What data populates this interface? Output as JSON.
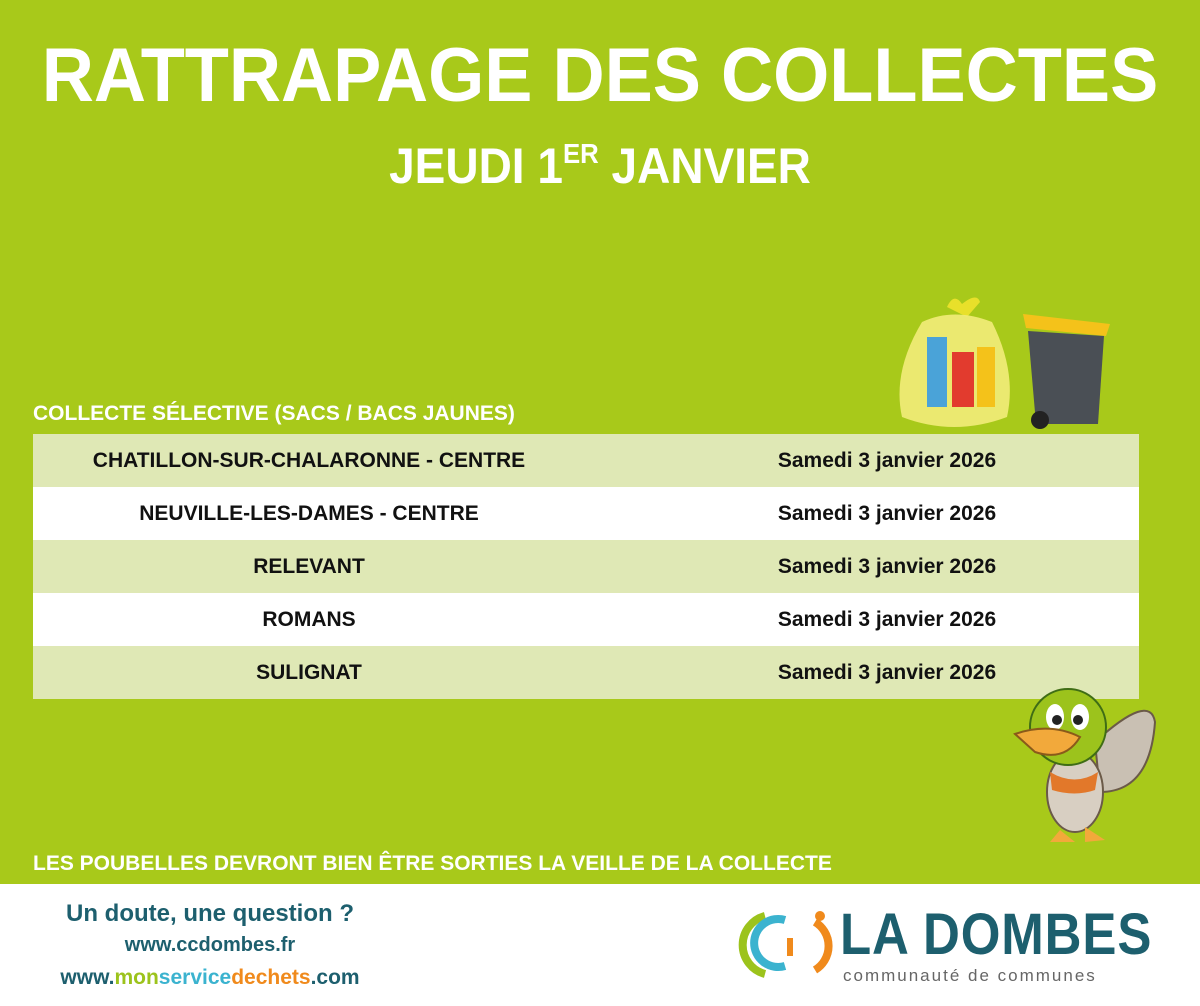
{
  "title": "RATTRAPAGE DES COLLECTES",
  "subtitle": {
    "main": "JEUDI 1",
    "sup": "ER",
    "end": " JANVIER"
  },
  "section_label": "COLLECTE SÉLECTIVE (SACS / BACS JAUNES)",
  "rows": [
    {
      "commune": "CHATILLON-SUR-CHALARONNE - CENTRE",
      "date": "Samedi 3 janvier 2026"
    },
    {
      "commune": "NEUVILLE-LES-DAMES - CENTRE",
      "date": "Samedi 3 janvier 2026"
    },
    {
      "commune": "RELEVANT",
      "date": "Samedi 3 janvier 2026"
    },
    {
      "commune": "ROMANS",
      "date": "Samedi 3 janvier 2026"
    },
    {
      "commune": "SULIGNAT",
      "date": "Samedi 3 janvier 2026"
    }
  ],
  "note": "LES POUBELLES DEVRONT BIEN ÊTRE SORTIES LA VEILLE DE LA COLLECTE",
  "footer": {
    "question": "Un doute, une question ?",
    "site1": "www.ccdombes.fr",
    "site2": {
      "a": "www.",
      "b": "mon",
      "c": "service",
      "d": "dechets",
      "e": ".com"
    }
  },
  "logo": {
    "name": "LA DOMBES",
    "sub": "communauté de communes"
  },
  "colors": {
    "background": "#a8c91a",
    "row_alt": "#dfe8b5",
    "teal": "#1d5f6e",
    "orange": "#f08a1c",
    "cyan": "#3bb3cf",
    "lime": "#9cc31c"
  }
}
